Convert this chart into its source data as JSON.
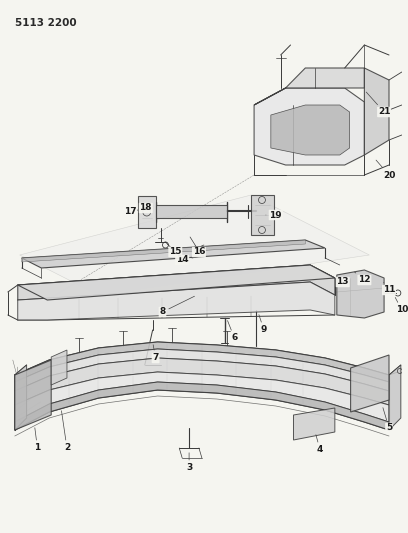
{
  "title": "5113 2200",
  "bg": "#f5f5f0",
  "lc": "#3a3a3a",
  "fig_w": 4.08,
  "fig_h": 5.33,
  "dpi": 100
}
